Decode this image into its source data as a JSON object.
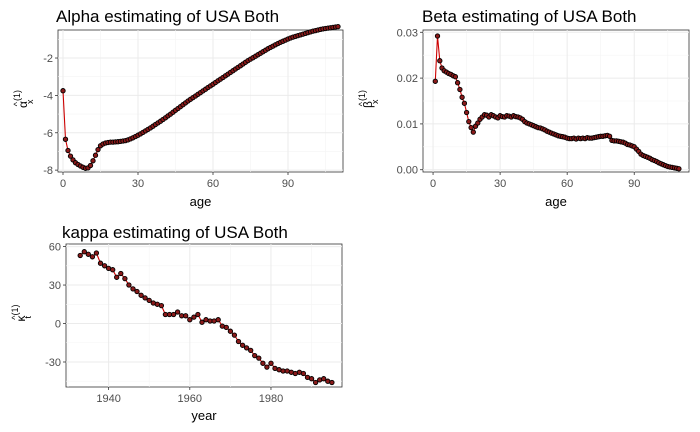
{
  "chart_data": [
    {
      "id": "alpha",
      "type": "scatter",
      "title": "Alpha estimating of USA Both",
      "xlabel": "age",
      "ylabel_main": "α",
      "ylabel_sub": "x",
      "ylabel_sup": "(1)",
      "ylabel_hat": "^",
      "xlim": [
        -2,
        112
      ],
      "ylim": [
        -8.1,
        -0.5
      ],
      "xticks": [
        0,
        30,
        60,
        90
      ],
      "yticks": [
        -8,
        -6,
        -4,
        -2
      ],
      "xtick_labels": [
        "0",
        "30",
        "60",
        "90"
      ],
      "ytick_labels": [
        "-8",
        "-6",
        "-4",
        "-2"
      ],
      "grid": true,
      "colors": {
        "line": "#cc0000",
        "point": "#8b1a1a"
      },
      "x": [
        0,
        1,
        2,
        3,
        4,
        5,
        6,
        7,
        8,
        9,
        10,
        11,
        12,
        13,
        14,
        15,
        16,
        17,
        18,
        19,
        20,
        21,
        22,
        23,
        24,
        25,
        26,
        27,
        28,
        29,
        30,
        31,
        32,
        33,
        34,
        35,
        36,
        37,
        38,
        39,
        40,
        41,
        42,
        43,
        44,
        45,
        46,
        47,
        48,
        49,
        50,
        51,
        52,
        53,
        54,
        55,
        56,
        57,
        58,
        59,
        60,
        61,
        62,
        63,
        64,
        65,
        66,
        67,
        68,
        69,
        70,
        71,
        72,
        73,
        74,
        75,
        76,
        77,
        78,
        79,
        80,
        81,
        82,
        83,
        84,
        85,
        86,
        87,
        88,
        89,
        90,
        91,
        92,
        93,
        94,
        95,
        96,
        97,
        98,
        99,
        100,
        101,
        102,
        103,
        104,
        105,
        106,
        107,
        108,
        109,
        110
      ],
      "y": [
        -3.75,
        -6.35,
        -6.95,
        -7.25,
        -7.45,
        -7.6,
        -7.7,
        -7.78,
        -7.85,
        -7.9,
        -7.88,
        -7.75,
        -7.5,
        -7.2,
        -6.9,
        -6.7,
        -6.6,
        -6.55,
        -6.52,
        -6.5,
        -6.5,
        -6.49,
        -6.48,
        -6.46,
        -6.44,
        -6.42,
        -6.38,
        -6.33,
        -6.27,
        -6.2,
        -6.13,
        -6.06,
        -5.98,
        -5.9,
        -5.82,
        -5.74,
        -5.65,
        -5.56,
        -5.47,
        -5.38,
        -5.29,
        -5.2,
        -5.1,
        -5.0,
        -4.9,
        -4.8,
        -4.7,
        -4.6,
        -4.5,
        -4.4,
        -4.3,
        -4.21,
        -4.12,
        -4.03,
        -3.94,
        -3.85,
        -3.76,
        -3.67,
        -3.58,
        -3.49,
        -3.4,
        -3.31,
        -3.22,
        -3.13,
        -3.04,
        -2.95,
        -2.86,
        -2.77,
        -2.68,
        -2.59,
        -2.5,
        -2.41,
        -2.32,
        -2.23,
        -2.14,
        -2.06,
        -1.98,
        -1.9,
        -1.82,
        -1.74,
        -1.66,
        -1.58,
        -1.5,
        -1.43,
        -1.36,
        -1.29,
        -1.22,
        -1.16,
        -1.1,
        -1.04,
        -0.98,
        -0.93,
        -0.88,
        -0.84,
        -0.8,
        -0.76,
        -0.72,
        -0.68,
        -0.64,
        -0.6,
        -0.56,
        -0.53,
        -0.5,
        -0.47,
        -0.44,
        -0.42,
        -0.4,
        -0.38,
        -0.36,
        -0.34,
        -0.32
      ]
    },
    {
      "id": "beta",
      "type": "scatter",
      "title": "Beta estimating of USA Both",
      "xlabel": "age",
      "ylabel_main": "β",
      "ylabel_sub": "x",
      "ylabel_sup": "(1)",
      "ylabel_hat": "^",
      "xlim": [
        -4.5,
        114.5
      ],
      "ylim": [
        -0.0005,
        0.0305
      ],
      "xticks": [
        0,
        30,
        60,
        90
      ],
      "yticks": [
        0.0,
        0.01,
        0.02,
        0.03
      ],
      "xtick_labels": [
        "0",
        "30",
        "60",
        "90"
      ],
      "ytick_labels": [
        "0.00",
        "0.01",
        "0.02",
        "0.03"
      ],
      "grid": true,
      "colors": {
        "line": "#cc0000",
        "point": "#8b1a1a"
      },
      "x": [
        1,
        2,
        3,
        4,
        5,
        6,
        7,
        8,
        9,
        10,
        11,
        12,
        13,
        14,
        15,
        16,
        17,
        18,
        19,
        20,
        21,
        22,
        23,
        24,
        25,
        26,
        27,
        28,
        29,
        30,
        31,
        32,
        33,
        34,
        35,
        36,
        37,
        38,
        39,
        40,
        41,
        42,
        43,
        44,
        45,
        46,
        47,
        48,
        49,
        50,
        51,
        52,
        53,
        54,
        55,
        56,
        57,
        58,
        59,
        60,
        61,
        62,
        63,
        64,
        65,
        66,
        67,
        68,
        69,
        70,
        71,
        72,
        73,
        74,
        75,
        76,
        77,
        78,
        79,
        80,
        81,
        82,
        83,
        84,
        85,
        86,
        87,
        88,
        89,
        90,
        91,
        92,
        93,
        94,
        95,
        96,
        97,
        98,
        99,
        100,
        101,
        102,
        103,
        104,
        105,
        106,
        107,
        108,
        109,
        110
      ],
      "y": [
        0.0193,
        0.0292,
        0.0238,
        0.0222,
        0.0216,
        0.0213,
        0.021,
        0.0208,
        0.0205,
        0.0203,
        0.019,
        0.0175,
        0.0158,
        0.0145,
        0.0125,
        0.0105,
        0.0092,
        0.0082,
        0.0095,
        0.0102,
        0.011,
        0.0115,
        0.012,
        0.0119,
        0.0115,
        0.012,
        0.0118,
        0.0115,
        0.0113,
        0.0118,
        0.0116,
        0.0115,
        0.0118,
        0.0117,
        0.0115,
        0.0118,
        0.0116,
        0.0115,
        0.0113,
        0.011,
        0.0105,
        0.0102,
        0.01,
        0.0098,
        0.0096,
        0.0094,
        0.0092,
        0.0091,
        0.0089,
        0.0087,
        0.0084,
        0.0082,
        0.008,
        0.0078,
        0.0076,
        0.0074,
        0.0073,
        0.0072,
        0.0071,
        0.0069,
        0.0068,
        0.0068,
        0.0069,
        0.0067,
        0.0069,
        0.0068,
        0.0069,
        0.0068,
        0.007,
        0.0069,
        0.0069,
        0.007,
        0.0071,
        0.0072,
        0.0073,
        0.0073,
        0.0074,
        0.0075,
        0.0073,
        0.0064,
        0.0063,
        0.0063,
        0.0062,
        0.0061,
        0.006,
        0.0058,
        0.0055,
        0.0054,
        0.0052,
        0.005,
        0.0045,
        0.004,
        0.0034,
        0.0031,
        0.0029,
        0.0027,
        0.0025,
        0.0022,
        0.002,
        0.0018,
        0.0015,
        0.0013,
        0.0011,
        0.0009,
        0.0007,
        0.0006,
        0.0005,
        0.0004,
        0.0003,
        0.0002
      ]
    },
    {
      "id": "kappa",
      "type": "scatter",
      "title": "kappa estimating of USA Both",
      "xlabel": "year",
      "ylabel_main": "κ",
      "ylabel_sub": "t",
      "ylabel_sup": "(1)",
      "ylabel_hat": "^",
      "xlim": [
        1929.5,
        1997.5
      ],
      "ylim": [
        -49.5,
        62
      ],
      "xticks": [
        1940,
        1960,
        1980
      ],
      "yticks": [
        -30,
        0,
        30,
        60
      ],
      "xtick_labels": [
        "1940",
        "1960",
        "1980"
      ],
      "ytick_labels": [
        "-30",
        "0",
        "30",
        "60"
      ],
      "grid": true,
      "colors": {
        "line": "#cc0000",
        "point": "#8b1a1a"
      },
      "x": [
        1933,
        1934,
        1935,
        1936,
        1937,
        1938,
        1939,
        1940,
        1941,
        1942,
        1943,
        1944,
        1945,
        1946,
        1947,
        1948,
        1949,
        1950,
        1951,
        1952,
        1953,
        1954,
        1955,
        1956,
        1957,
        1958,
        1959,
        1960,
        1961,
        1962,
        1963,
        1964,
        1965,
        1966,
        1967,
        1968,
        1969,
        1970,
        1971,
        1972,
        1973,
        1974,
        1975,
        1976,
        1977,
        1978,
        1979,
        1980,
        1981,
        1982,
        1983,
        1984,
        1985,
        1986,
        1987,
        1988,
        1989,
        1990,
        1991,
        1992,
        1993,
        1994,
        1995
      ],
      "y": [
        53,
        56,
        54,
        52,
        55,
        47,
        45,
        43,
        42,
        36,
        39,
        35,
        30,
        27,
        25,
        22,
        20,
        18,
        16,
        15,
        14,
        7,
        7,
        7,
        9,
        6,
        6,
        3,
        5,
        7,
        1,
        3,
        2,
        2,
        3,
        -2,
        -3,
        -6,
        -9,
        -14,
        -17,
        -19,
        -21,
        -25,
        -27,
        -31,
        -34,
        -31,
        -35,
        -36,
        -37,
        -37,
        -38,
        -39,
        -38,
        -39,
        -42,
        -43,
        -46,
        -44,
        -43,
        -45,
        -46
      ]
    }
  ]
}
